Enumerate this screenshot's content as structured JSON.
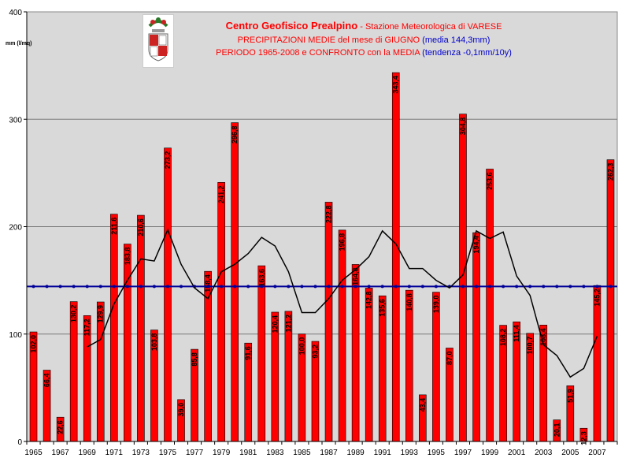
{
  "header": {
    "title_main": "Centro Geofisico Prealpino",
    "title_suffix": " - Stazione Meteorologica di VARESE",
    "line2_red": "PRECIPITAZIONI MEDIE del mese di GIUGNO ",
    "line2_blue": "(media 144,3mm)",
    "line3_red": "PERIODO 1965-2008 e CONFRONTO con la MEDIA ",
    "line3_blue": "(tendenza -0,1mm/10y)"
  },
  "colors": {
    "bar": "#ff0000",
    "mean_line": "#000099",
    "moving_avg": "#000000",
    "plot_bg": "#d9d9d9"
  },
  "logo": {
    "icon": "varese-coat-of-arms"
  },
  "chart_data": {
    "type": "bar",
    "ylabel": "mm (l/mq)",
    "ylim": [
      0,
      400
    ],
    "yticks": [
      0,
      100,
      200,
      300,
      400
    ],
    "categories": [
      "1965",
      "1966",
      "1967",
      "1968",
      "1969",
      "1970",
      "1971",
      "1972",
      "1973",
      "1974",
      "1975",
      "1976",
      "1977",
      "1978",
      "1979",
      "1980",
      "1981",
      "1982",
      "1983",
      "1984",
      "1985",
      "1986",
      "1987",
      "1988",
      "1989",
      "1990",
      "1991",
      "1992",
      "1993",
      "1994",
      "1995",
      "1996",
      "1997",
      "1998",
      "1999",
      "2000",
      "2001",
      "2002",
      "2003",
      "2004",
      "2005",
      "2006",
      "2007",
      "2008"
    ],
    "xtick_labels": [
      "1965",
      "1967",
      "1969",
      "1971",
      "1973",
      "1975",
      "1977",
      "1979",
      "1981",
      "1983",
      "1985",
      "1987",
      "1989",
      "1991",
      "1993",
      "1995",
      "1997",
      "1999",
      "2001",
      "2003",
      "2005",
      "2007"
    ],
    "values": [
      102.0,
      66.4,
      22.6,
      130.2,
      117.2,
      129.9,
      211.6,
      183.8,
      210.6,
      103.8,
      273.2,
      39.0,
      85.8,
      158.4,
      241.2,
      296.8,
      91.6,
      163.6,
      120.4,
      121.2,
      100.0,
      93.2,
      222.8,
      196.8,
      164.8,
      142.8,
      135.6,
      343.4,
      140.8,
      43.4,
      139.0,
      87.0,
      304.8,
      194.4,
      253.6,
      108.2,
      111.4,
      100.7,
      108.4,
      20.1,
      51.9,
      12.3,
      145.2,
      262.3
    ],
    "labels": [
      "102,0",
      "66,4",
      "22,6",
      "130,2",
      "117,2",
      "129,9",
      "211,6",
      "183,8",
      "210,6",
      "103,8",
      "273,2",
      "39,0",
      "85,8",
      "158,4",
      "241,2",
      "296,8",
      "91,6",
      "163,6",
      "120,4",
      "121,2",
      "100,0",
      "93,2",
      "222,8",
      "196,8",
      "164,8",
      "142,8",
      "135,6",
      "343,4",
      "140,8",
      "43,4",
      "139,0",
      "87,0",
      "304,8",
      "194,4",
      "253,6",
      "108,2",
      "111,4",
      "100,7",
      "108,4",
      "20,1",
      "51,9",
      "12,3",
      "145,2",
      "262,3"
    ],
    "mean_value": 144.3,
    "moving_average": [
      null,
      null,
      null,
      null,
      88,
      95,
      128,
      150,
      170,
      168,
      197,
      165,
      143,
      133,
      158,
      165,
      175,
      190,
      182,
      158,
      120,
      120,
      133,
      150,
      160,
      172,
      196,
      184,
      161,
      161,
      150,
      143,
      155,
      196,
      189,
      195,
      154,
      136,
      90,
      80,
      60,
      68,
      98,
      null
    ]
  }
}
